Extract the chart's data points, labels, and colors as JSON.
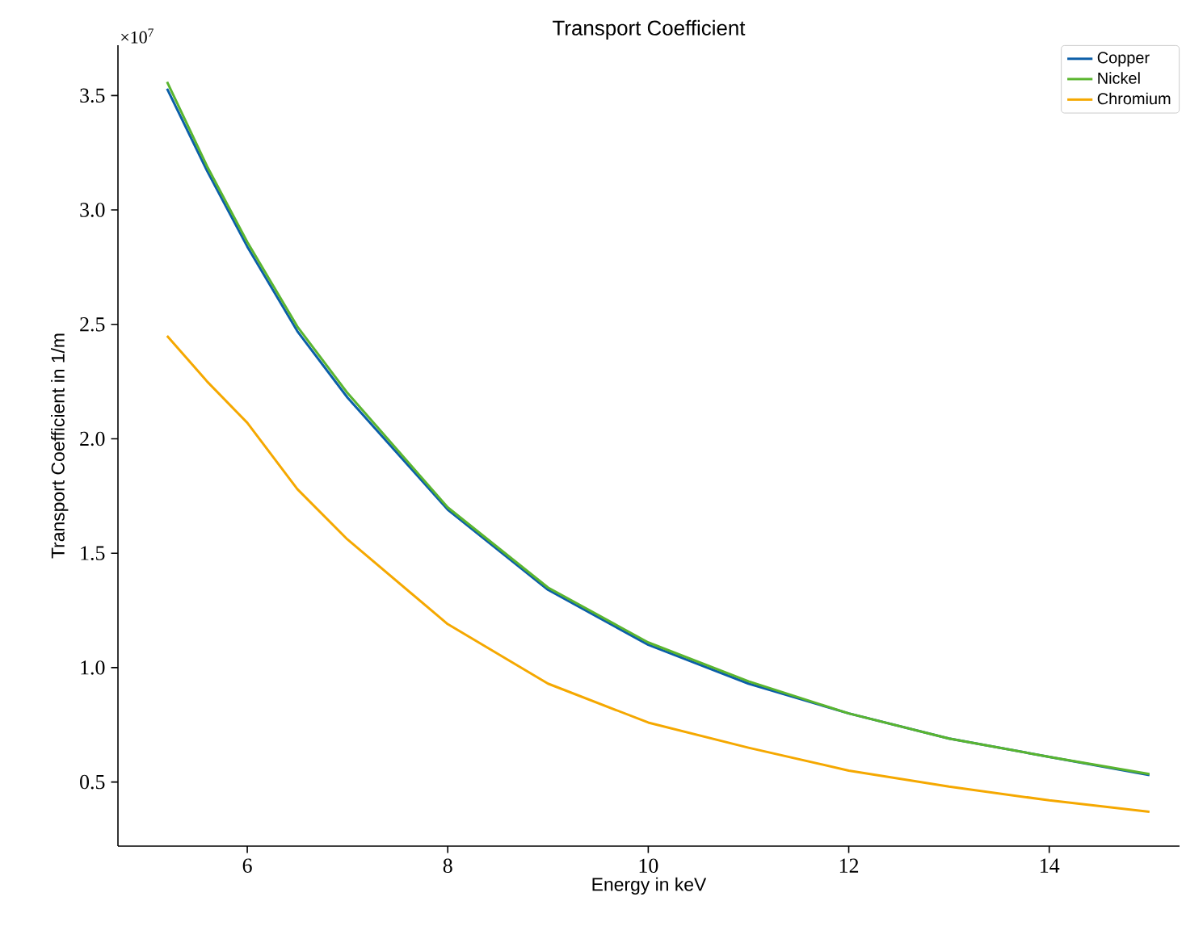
{
  "chart_data": {
    "type": "line",
    "title": "Transport Coefficient",
    "xlabel": "Energy in keV",
    "ylabel": "Transport Coefficient in 1/m",
    "annotations": [
      "×10$^{7}$"
    ],
    "xlim": [
      4.71,
      15.3
    ],
    "ylim": [
      0.22,
      3.72
    ],
    "xticks": [
      6,
      8,
      10,
      12,
      14
    ],
    "yticks": [
      0.5,
      {
        "value": 1,
        "label": "1.0"
      },
      1.5,
      {
        "value": 2,
        "label": "2.0"
      },
      2.5,
      {
        "value": 3,
        "label": "3.0"
      },
      3.5
    ],
    "legend": "top right",
    "series": [
      {
        "name": "Copper",
        "color": "#0b5ea8",
        "x": [
          5.2,
          5.6,
          6,
          6.5,
          7,
          8,
          9,
          10,
          11,
          12,
          13,
          14,
          15
        ],
        "values": [
          3.53,
          3.17,
          2.84,
          2.47,
          2.18,
          1.69,
          1.34,
          1.1,
          0.93,
          0.8,
          0.69,
          0.61,
          0.53
        ]
      },
      {
        "name": "Nickel",
        "color": "#5ab52f",
        "x": [
          5.2,
          5.6,
          6,
          6.5,
          7,
          8,
          9,
          10,
          11,
          12,
          13,
          14,
          15
        ],
        "values": [
          3.56,
          3.19,
          2.86,
          2.49,
          2.2,
          1.7,
          1.35,
          1.11,
          0.94,
          0.8,
          0.69,
          0.61,
          0.535
        ]
      },
      {
        "name": "Chromium",
        "color": "#f5a800",
        "x": [
          5.2,
          5.6,
          6,
          6.5,
          7,
          8,
          9,
          10,
          11,
          12,
          13,
          14,
          15
        ],
        "values": [
          2.45,
          2.25,
          2.07,
          1.78,
          1.56,
          1.19,
          0.93,
          0.76,
          0.65,
          0.55,
          0.48,
          0.42,
          0.37
        ]
      }
    ]
  }
}
